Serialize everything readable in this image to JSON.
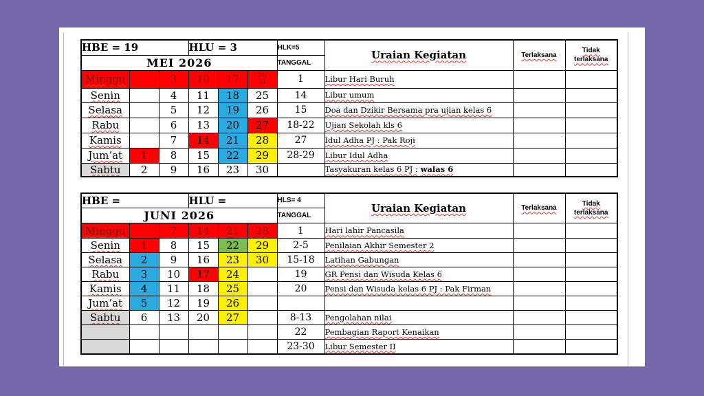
{
  "colors": {
    "background_purple": "#7568ab",
    "paper_white": "#ffffff",
    "cell_red": "#ff0000",
    "cell_blue": "#29abe2",
    "cell_yellow": "#fdf000",
    "cell_green": "#7ebc51",
    "cell_gray": "#d9d9d9",
    "sunday_text_maroon": "#7a1111",
    "spellcheck_squiggle": "#e23a2e"
  },
  "tables": [
    {
      "id": "t1",
      "hbe": "HBE = 19",
      "hlu": "HLU = 3",
      "corner": "HLK=5",
      "month": "MEI 2026",
      "tanggal_label": "TANGGAL",
      "uraian_label": "Uraian Kegiatan",
      "terlaksana_label": "Terlaksana",
      "tidak_label": "Tidak terlaksana",
      "rows": [
        {
          "day": "Minggu",
          "day_bg": "red",
          "day_fg": "maroon",
          "dates": [
            {
              "t": "",
              "bg": "red"
            },
            {
              "t": "3",
              "bg": "red",
              "fg": "maroon"
            },
            {
              "t": "10",
              "bg": "red",
              "fg": "maroon"
            },
            {
              "t": "17",
              "bg": "red",
              "fg": "maroon"
            },
            {
              "t": "24/\n31",
              "bg": "red",
              "fg": "maroon",
              "small": true
            }
          ],
          "tanggal": "1",
          "uraian": "Libur Hari Buruh",
          "uraian_bold": ""
        },
        {
          "day": "Senin",
          "dates": [
            {
              "t": ""
            },
            {
              "t": "4"
            },
            {
              "t": "11"
            },
            {
              "t": "18",
              "bg": "blue"
            },
            {
              "t": "25"
            }
          ],
          "tanggal": "14",
          "uraian": "Libur umum",
          "uraian_bold": ""
        },
        {
          "day": "Selasa",
          "dates": [
            {
              "t": ""
            },
            {
              "t": "5"
            },
            {
              "t": "12"
            },
            {
              "t": "19",
              "bg": "blue"
            },
            {
              "t": "26"
            }
          ],
          "tanggal": "15",
          "uraian": "Doa dan Dzikir Bersama pra ujian kelas 6",
          "uraian_bold": ""
        },
        {
          "day": "Rabu",
          "dates": [
            {
              "t": ""
            },
            {
              "t": "6"
            },
            {
              "t": "13"
            },
            {
              "t": "20",
              "bg": "blue"
            },
            {
              "t": "27",
              "bg": "red"
            }
          ],
          "tanggal": "18-22",
          "uraian": "Ujian Sekolah kls 6",
          "uraian_bold": ""
        },
        {
          "day": "Kamis",
          "dates": [
            {
              "t": ""
            },
            {
              "t": "7"
            },
            {
              "t": "14",
              "bg": "red"
            },
            {
              "t": "21",
              "bg": "blue"
            },
            {
              "t": "28",
              "bg": "yellow"
            }
          ],
          "tanggal": "27",
          "uraian": "Idul Adha PJ : Pak Roji",
          "uraian_bold": ""
        },
        {
          "day": "Jum’at",
          "dates": [
            {
              "t": "1",
              "bg": "red"
            },
            {
              "t": "8"
            },
            {
              "t": "15"
            },
            {
              "t": "22",
              "bg": "blue"
            },
            {
              "t": "29",
              "bg": "yellow"
            }
          ],
          "tanggal": "28-29",
          "uraian": "Libur Idul Adha",
          "uraian_bold": ""
        },
        {
          "day": "Sabtu",
          "day_bg": "gray",
          "dates": [
            {
              "t": "2"
            },
            {
              "t": "9"
            },
            {
              "t": "16"
            },
            {
              "t": "23"
            },
            {
              "t": "30"
            }
          ],
          "tanggal": "",
          "uraian": "Tasyakuran kelas 6  PJ :",
          "uraian_bold": "walas 6"
        }
      ]
    },
    {
      "id": "t2",
      "hbe": "HBE =",
      "hlu": "HLU =",
      "corner": "HLS= 4",
      "month": "JUNI 2026",
      "tanggal_label": "TANGGAL",
      "uraian_label": "Uraian Kegiatan",
      "terlaksana_label": "Terlaksana",
      "tidak_label": "Tidak terlaksana",
      "rows": [
        {
          "day": "Minggu",
          "day_bg": "red",
          "day_fg": "maroon",
          "dates": [
            {
              "t": "",
              "bg": "red"
            },
            {
              "t": "7",
              "bg": "red",
              "fg": "maroon"
            },
            {
              "t": "14",
              "bg": "red",
              "fg": "maroon"
            },
            {
              "t": "21",
              "bg": "red",
              "fg": "maroon"
            },
            {
              "t": "28",
              "bg": "red",
              "fg": "maroon"
            }
          ],
          "tanggal": "1",
          "uraian": "Hari lahir Pancasila",
          "uraian_bold": ""
        },
        {
          "day": "Senin",
          "dates": [
            {
              "t": "1",
              "bg": "red"
            },
            {
              "t": "8"
            },
            {
              "t": "15"
            },
            {
              "t": "22",
              "bg": "green"
            },
            {
              "t": "29",
              "bg": "yellow"
            }
          ],
          "tanggal": "2-5",
          "uraian": "Penilaian Akhir Semester 2",
          "uraian_bold": ""
        },
        {
          "day": "Selasa",
          "dates": [
            {
              "t": "2",
              "bg": "blue"
            },
            {
              "t": "9"
            },
            {
              "t": "16"
            },
            {
              "t": "23",
              "bg": "yellow"
            },
            {
              "t": "30",
              "bg": "yellow"
            }
          ],
          "tanggal": "15-18",
          "uraian": "Latihan Gabungan",
          "uraian_bold": ""
        },
        {
          "day": "Rabu",
          "dates": [
            {
              "t": "3",
              "bg": "blue"
            },
            {
              "t": "10"
            },
            {
              "t": "17",
              "bg": "red"
            },
            {
              "t": "24",
              "bg": "yellow"
            },
            {
              "t": ""
            }
          ],
          "tanggal": "19",
          "uraian": "GR Pensi dan Wisuda Kelas 6",
          "uraian_bold": ""
        },
        {
          "day": "Kamis",
          "dates": [
            {
              "t": "4",
              "bg": "blue"
            },
            {
              "t": "11"
            },
            {
              "t": "18"
            },
            {
              "t": "25",
              "bg": "yellow"
            },
            {
              "t": ""
            }
          ],
          "tanggal": "20",
          "uraian": "Pensi dan Wisuda kelas 6 PJ : Pak Firman",
          "uraian_bold": ""
        },
        {
          "day": "Jum’at",
          "dates": [
            {
              "t": "5",
              "bg": "blue"
            },
            {
              "t": "12"
            },
            {
              "t": "19"
            },
            {
              "t": "26",
              "bg": "yellow"
            },
            {
              "t": ""
            }
          ],
          "tanggal": "",
          "uraian": "",
          "uraian_bold": ""
        },
        {
          "day": "Sabtu",
          "day_bg": "gray",
          "dates": [
            {
              "t": "6"
            },
            {
              "t": "13"
            },
            {
              "t": "20"
            },
            {
              "t": "27",
              "bg": "yellow"
            },
            {
              "t": ""
            }
          ],
          "tanggal": "8-13",
          "uraian": "Pengolahan nilai",
          "uraian_bold": ""
        },
        {
          "day": "",
          "day_bg": "gray",
          "dates": [
            {
              "t": ""
            },
            {
              "t": ""
            },
            {
              "t": ""
            },
            {
              "t": ""
            },
            {
              "t": ""
            }
          ],
          "tanggal": "22",
          "uraian": "Pembagian Raport Kenaikan",
          "uraian_bold": ""
        },
        {
          "day": "",
          "day_bg": "gray",
          "dates": [
            {
              "t": ""
            },
            {
              "t": ""
            },
            {
              "t": ""
            },
            {
              "t": ""
            },
            {
              "t": ""
            }
          ],
          "tanggal": "23-30",
          "uraian": "Libur Semester II",
          "uraian_bold": ""
        }
      ]
    }
  ]
}
